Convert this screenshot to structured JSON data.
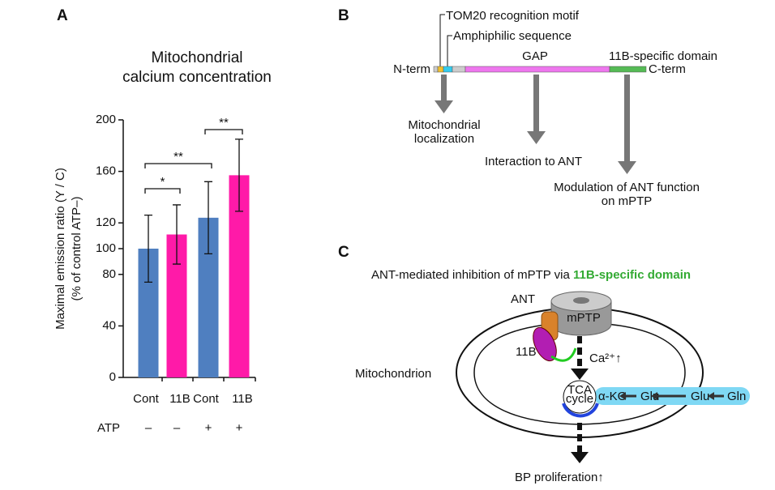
{
  "chart_data": {
    "type": "bar",
    "panel": "A",
    "title": [
      "Mitochondrial",
      "calcium concentration"
    ],
    "y_label": [
      "Maximal emission ratio (Y / C)",
      "(% of control ATP–)"
    ],
    "categories": [
      "Cont",
      "11B",
      "Cont",
      "11B"
    ],
    "values": [
      100,
      111,
      124,
      157
    ],
    "errors": [
      26,
      23,
      28,
      28
    ],
    "colors": [
      "#4f7fc0",
      "#ff1aa8",
      "#4f7fc0",
      "#ff1aa8"
    ],
    "ylim": [
      0,
      200
    ],
    "yticks": [
      0,
      40,
      80,
      100,
      120,
      160,
      200
    ],
    "row_label": "ATP",
    "row_values": [
      "–",
      "–",
      "+",
      "+"
    ],
    "significance": [
      "*",
      "**",
      "**"
    ]
  },
  "panel_b": {
    "letter": "B",
    "tom20": "TOM20 recognition motif",
    "amphiphilic": "Amphiphilic sequence",
    "n_term": "N-term",
    "gap": "GAP",
    "domain": "11B-specific domain",
    "c_term": "C-term",
    "outcomes": [
      [
        "Mitochondrial",
        "localization"
      ],
      [
        "Interaction to ANT"
      ],
      [
        "Modulation of ANT function",
        "on mPTP"
      ]
    ]
  },
  "panel_c": {
    "letter": "C",
    "title": "ANT-mediated inhibition of mPTP via ",
    "title_highlight": "11B-specific domain",
    "ant": "ANT",
    "mptp": "mPTP",
    "protein": "11B",
    "calcium": "Ca²⁺↑",
    "organelle": "Mitochondrion",
    "tca": [
      "TCA",
      "cycle"
    ],
    "metabolites": [
      "α-KG",
      "Glu",
      "Glu",
      "Gln"
    ],
    "result": "BP proliferation↑"
  }
}
